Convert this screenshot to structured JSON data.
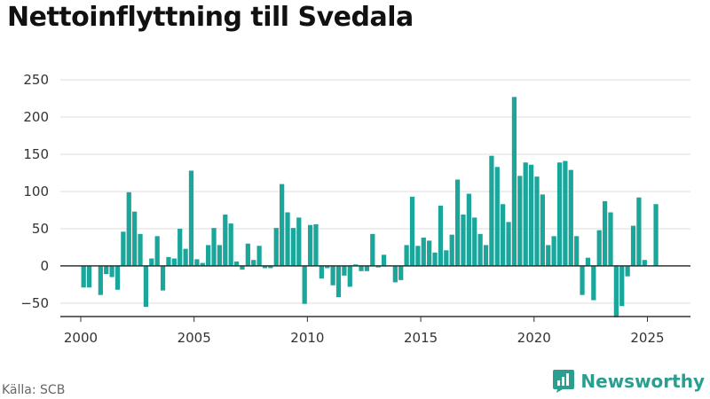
{
  "title": "Nettoinflyttning till Svedala",
  "source": "Källa: SCB",
  "brand": {
    "name": "Newsworthy",
    "icon": "newsworthy-logo-icon"
  },
  "colors": {
    "bar": "#1aa69a",
    "zero_line": "#333333",
    "grid": "#dddddd",
    "brand": "#2a9e8f"
  },
  "chart_data": {
    "type": "bar",
    "title": "Nettoinflyttning till Svedala",
    "xlabel": "",
    "ylabel": "",
    "x_ticks": [
      2000,
      2005,
      2010,
      2015,
      2020,
      2025
    ],
    "y_ticks": [
      -50,
      0,
      50,
      100,
      150,
      200,
      250
    ],
    "xlim": [
      1999.1,
      2026.9
    ],
    "ylim": [
      -68,
      262
    ],
    "grid": true,
    "x": [
      2000.125,
      2000.375,
      2000.625,
      2000.875,
      2001.125,
      2001.375,
      2001.625,
      2001.875,
      2002.125,
      2002.375,
      2002.625,
      2002.875,
      2003.125,
      2003.375,
      2003.625,
      2003.875,
      2004.125,
      2004.375,
      2004.625,
      2004.875,
      2005.125,
      2005.375,
      2005.625,
      2005.875,
      2006.125,
      2006.375,
      2006.625,
      2006.875,
      2007.125,
      2007.375,
      2007.625,
      2007.875,
      2008.125,
      2008.375,
      2008.625,
      2008.875,
      2009.125,
      2009.375,
      2009.625,
      2009.875,
      2010.125,
      2010.375,
      2010.625,
      2010.875,
      2011.125,
      2011.375,
      2011.625,
      2011.875,
      2012.125,
      2012.375,
      2012.625,
      2012.875,
      2013.125,
      2013.375,
      2013.625,
      2013.875,
      2014.125,
      2014.375,
      2014.625,
      2014.875,
      2015.125,
      2015.375,
      2015.625,
      2015.875,
      2016.125,
      2016.375,
      2016.625,
      2016.875,
      2017.125,
      2017.375,
      2017.625,
      2017.875,
      2018.125,
      2018.375,
      2018.625,
      2018.875,
      2019.125,
      2019.375,
      2019.625,
      2019.875,
      2020.125,
      2020.375,
      2020.625,
      2020.875,
      2021.125,
      2021.375,
      2021.625,
      2021.875,
      2022.125,
      2022.375,
      2022.625,
      2022.875,
      2023.125,
      2023.375,
      2023.625,
      2023.875,
      2024.125,
      2024.375,
      2024.625,
      2024.875,
      2025.125,
      2025.375
    ],
    "values": [
      -29,
      -29,
      0,
      -39,
      -11,
      -15,
      -32,
      46,
      99,
      73,
      43,
      -55,
      10,
      40,
      -33,
      12,
      10,
      50,
      23,
      128,
      9,
      4,
      28,
      51,
      28,
      69,
      57,
      6,
      -5,
      30,
      8,
      27,
      -3,
      -3,
      51,
      110,
      72,
      51,
      65,
      -51,
      55,
      56,
      -17,
      -3,
      -26,
      -42,
      -13,
      -28,
      2,
      -7,
      -7,
      43,
      -2,
      15,
      0,
      -22,
      -19,
      28,
      93,
      27,
      38,
      34,
      18,
      81,
      21,
      42,
      116,
      69,
      97,
      65,
      43,
      28,
      148,
      133,
      83,
      59,
      227,
      121,
      139,
      136,
      120,
      96,
      28,
      40,
      139,
      141,
      129,
      40,
      -39,
      11,
      -46,
      48,
      87,
      72,
      -69,
      -54,
      -14,
      54,
      92,
      8,
      0,
      83
    ]
  }
}
